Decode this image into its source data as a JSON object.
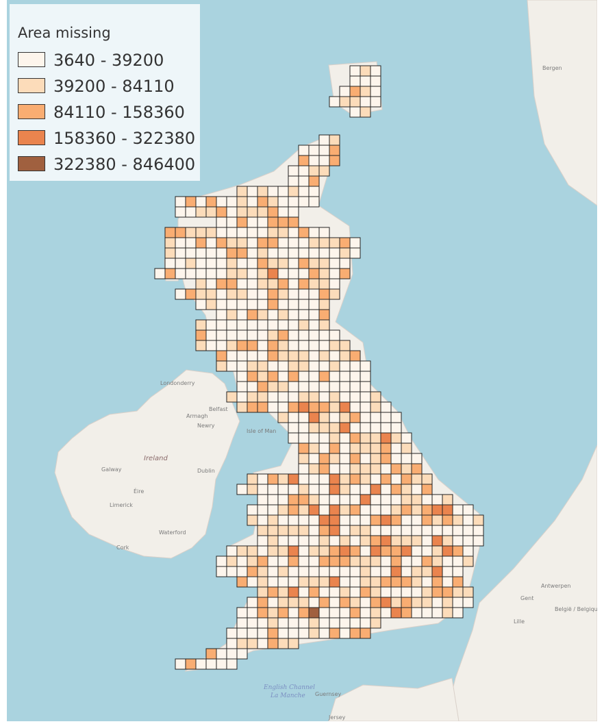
{
  "legend": {
    "title": "Area missing",
    "classes": [
      {
        "label": "3640 - 39200",
        "color": "#fdf5ec"
      },
      {
        "label": "39200 - 84110",
        "color": "#fcdcba"
      },
      {
        "label": "84110 - 158360",
        "color": "#f9ad72"
      },
      {
        "label": "158360 - 322380",
        "color": "#ea844e"
      },
      {
        "label": "322380 - 846400",
        "color": "#a0603f"
      }
    ]
  },
  "basemap": {
    "land_color": "#f2efe9",
    "sea_color": "#aad3df",
    "labels": {
      "ireland": "Ireland",
      "eire": "Éire",
      "isle_of_man": "Isle of Man",
      "belfast": "Belfast",
      "dublin": "Dublin",
      "newry": "Newry",
      "armagh": "Armagh",
      "londonderry": "Londonderry",
      "galway": "Galway",
      "limerick": "Limerick",
      "waterford": "Waterford",
      "cork": "Cork",
      "antwerpen": "Antwerpen",
      "belgie": "België / Belgique",
      "gent": "Gent",
      "lille": "Lille",
      "english_channel": "English Channel",
      "la_manche": "La Manche",
      "guernsey": "Guernsey",
      "jersey": "Jersey",
      "bergen": "Bergen"
    }
  },
  "grid": {
    "symbol": "o",
    "rows": [
      {
        "y": 96,
        "cells": "........................................ooo"
      },
      {
        "y": 111,
        "cells": "........................................o4o"
      }
    ]
  }
}
